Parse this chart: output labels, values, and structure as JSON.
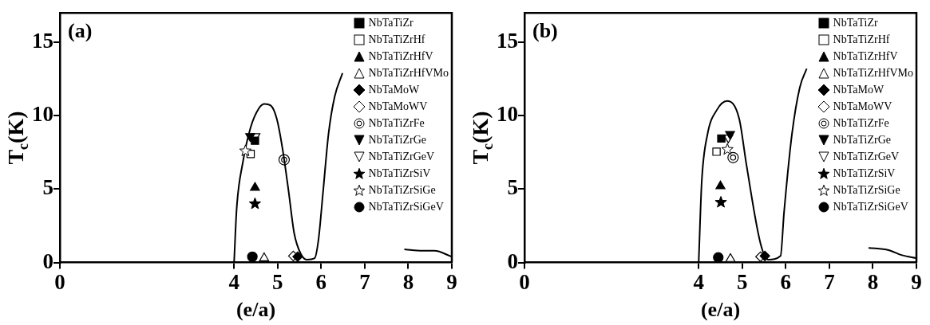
{
  "chart_data": [
    {
      "type": "scatter",
      "title": "(a)",
      "xlabel": "(e/a)",
      "ylabel": "T$_{c}$(K)",
      "xlim": [
        0,
        9
      ],
      "xticks": [
        0,
        4,
        5,
        6,
        7,
        8,
        9
      ],
      "ylim": [
        0,
        17
      ],
      "yticks": [
        0,
        5,
        10,
        15
      ],
      "grid": false,
      "legend": "top right",
      "series": [
        {
          "type": "line",
          "color": "#000000",
          "marker": "none",
          "x": [
            4.0,
            4.06,
            4.2,
            4.38,
            4.57,
            4.7,
            4.84,
            4.98,
            5.11,
            5.25,
            5.38,
            5.53,
            5.67,
            5.85,
            5.94,
            6.04,
            6.17,
            6.31,
            6.49,
            null,
            7.91,
            8.32,
            8.6,
            9.0
          ],
          "values": [
            0,
            3.7,
            6.8,
            9.2,
            10.5,
            10.8,
            10.7,
            9.8,
            7.8,
            4.9,
            2.0,
            0.6,
            0.2,
            0.3,
            1.6,
            4.7,
            8.8,
            11.3,
            12.9,
            null,
            0.9,
            0.8,
            0.8,
            0.4
          ]
        },
        {
          "name": "NbTaTiZr",
          "color": "#000000",
          "marker": "square",
          "x": [
            4.48
          ],
          "values": [
            8.3
          ]
        },
        {
          "name": "NbTaTiZrHf",
          "color": "#ffffff",
          "marker": "square",
          "x": [
            4.38
          ],
          "values": [
            7.4
          ]
        },
        {
          "name": "NbTaTiZrHfV",
          "color": "#000000",
          "marker": "triangle",
          "x": [
            4.48
          ],
          "values": [
            5.1
          ]
        },
        {
          "name": "NbTaTiZrHfVMo",
          "color": "#ffffff",
          "marker": "triangle",
          "x": [
            4.69
          ],
          "values": [
            0.3
          ]
        },
        {
          "name": "NbTaMoW",
          "color": "#000000",
          "marker": "diamond",
          "x": [
            5.46
          ],
          "values": [
            0.4
          ]
        },
        {
          "name": "NbTaMoWV",
          "color": "#ffffff",
          "marker": "diamond",
          "x": [
            5.36
          ],
          "values": [
            0.45
          ]
        },
        {
          "name": "NbTaTiZrFe",
          "color": "#ffffff",
          "marker": "double-circle",
          "x": [
            5.15
          ],
          "values": [
            7.0
          ]
        },
        {
          "name": "NbTaTiZrGe",
          "color": "#000000",
          "marker": "triangle-down",
          "x": [
            4.37
          ],
          "values": [
            8.6
          ]
        },
        {
          "name": "NbTaTiZrGeV",
          "color": "#ffffff",
          "marker": "triangle-down",
          "x": [
            4.49
          ],
          "values": [
            8.6
          ]
        },
        {
          "name": "NbTaTiZrSiV",
          "color": "#000000",
          "marker": "star",
          "x": [
            4.48
          ],
          "values": [
            4.0
          ]
        },
        {
          "name": "NbTaTiZrSiGe",
          "color": "#ffffff",
          "marker": "star",
          "x": [
            4.26
          ],
          "values": [
            7.6
          ]
        },
        {
          "name": "NbTaTiZrSiGeV",
          "color": "#000000",
          "marker": "circle",
          "x": [
            4.42
          ],
          "values": [
            0.4
          ]
        }
      ]
    },
    {
      "type": "scatter",
      "title": "(b)",
      "xlabel": "(e/a)",
      "ylabel": "T$_{c}$(K)",
      "xlim": [
        0,
        9
      ],
      "xticks": [
        0,
        4,
        5,
        6,
        7,
        8,
        9
      ],
      "ylim": [
        0,
        17
      ],
      "yticks": [
        0,
        5,
        10,
        15
      ],
      "grid": false,
      "legend": "top right",
      "series": [
        {
          "type": "line",
          "color": "#000000",
          "marker": "none",
          "x": [
            4.0,
            4.07,
            4.2,
            4.42,
            4.65,
            4.93,
            5.1,
            5.42,
            5.6,
            5.88,
            5.96,
            6.14,
            6.32,
            6.48,
            null,
            7.9,
            8.36,
            8.67,
            9.0
          ],
          "values": [
            0,
            5.5,
            8.7,
            10.4,
            11.0,
            9.8,
            6.6,
            1.3,
            0.2,
            0.45,
            3.4,
            8.7,
            11.9,
            13.2,
            null,
            1.0,
            0.85,
            0.5,
            0.3
          ]
        },
        {
          "name": "NbTaTiZr",
          "color": "#000000",
          "marker": "square",
          "x": [
            4.52
          ],
          "values": [
            8.45
          ]
        },
        {
          "name": "NbTaTiZrHf",
          "color": "#ffffff",
          "marker": "square",
          "x": [
            4.41
          ],
          "values": [
            7.55
          ]
        },
        {
          "name": "NbTaTiZrHfV",
          "color": "#000000",
          "marker": "triangle",
          "x": [
            4.5
          ],
          "values": [
            5.2
          ]
        },
        {
          "name": "NbTaTiZrHfVMo",
          "color": "#ffffff",
          "marker": "triangle",
          "x": [
            4.73
          ],
          "values": [
            0.25
          ]
        },
        {
          "name": "NbTaMoW",
          "color": "#000000",
          "marker": "diamond",
          "x": [
            5.52
          ],
          "values": [
            0.45
          ]
        },
        {
          "name": "NbTaMoWV",
          "color": "#ffffff",
          "marker": "diamond",
          "x": [
            5.42
          ],
          "values": [
            0.4
          ]
        },
        {
          "name": "NbTaTiZrFe",
          "color": "#ffffff",
          "marker": "double-circle",
          "x": [
            4.79
          ],
          "values": [
            7.15
          ]
        },
        {
          "name": "NbTaTiZrGe",
          "color": "#000000",
          "marker": "triangle-down",
          "x": [
            4.72
          ],
          "values": [
            8.75
          ]
        },
        {
          "name": "NbTaTiZrGeV",
          "color": "#ffffff",
          "marker": "triangle-down",
          "x": [
            4.68
          ],
          "values": [
            8.5
          ]
        },
        {
          "name": "NbTaTiZrSiV",
          "color": "#000000",
          "marker": "star",
          "x": [
            4.51
          ],
          "values": [
            4.1
          ]
        },
        {
          "name": "NbTaTiZrSiGe",
          "color": "#ffffff",
          "marker": "star",
          "x": [
            4.66
          ],
          "values": [
            7.7
          ]
        },
        {
          "name": "NbTaTiZrSiGeV",
          "color": "#000000",
          "marker": "circle",
          "x": [
            4.45
          ],
          "values": [
            0.35
          ]
        }
      ]
    }
  ]
}
